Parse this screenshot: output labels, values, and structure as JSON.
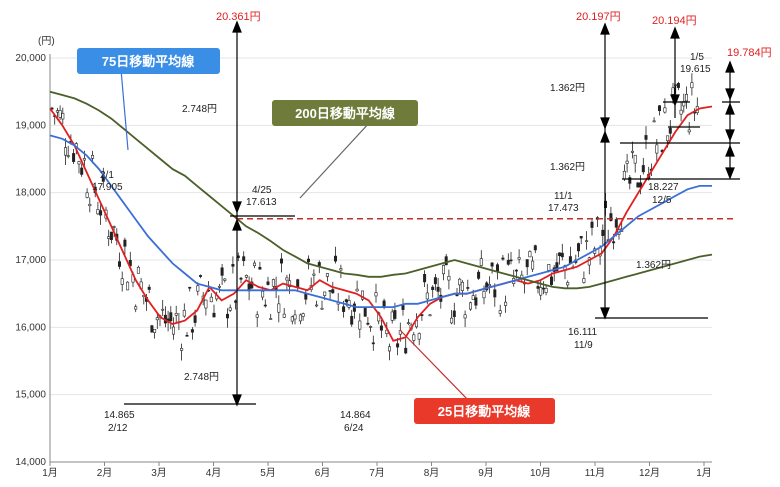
{
  "chart_data": {
    "type": "line",
    "y_unit_label": "(円)",
    "ylim": [
      14000,
      20000
    ],
    "y_ticks": [
      "20,000",
      "19,000",
      "18,000",
      "17,000",
      "16,000",
      "15,000",
      "14,000"
    ],
    "y_tick_values": [
      20000,
      19000,
      18000,
      17000,
      16000,
      15000,
      14000
    ],
    "x_ticks": [
      "1月",
      "2月",
      "3月",
      "4月",
      "5月",
      "6月",
      "7月",
      "8月",
      "9月",
      "10月",
      "11月",
      "12月",
      "1月"
    ],
    "series": [
      {
        "name": "25日移動平均線",
        "color": "#e02020",
        "values": [
          19250,
          19000,
          18700,
          18300,
          17900,
          17500,
          17100,
          16700,
          16400,
          16150,
          16050,
          16100,
          16250,
          16600,
          16400,
          16500,
          16700,
          16600,
          16550,
          16650,
          16600,
          16550,
          16700,
          16600,
          16550,
          16500,
          16400,
          16150,
          15800,
          15850,
          16150,
          16350,
          16450,
          16500,
          16500,
          16550,
          16600,
          16650,
          16700,
          16650,
          16700,
          16800,
          16850,
          16900,
          17000,
          17100,
          17350,
          17700,
          18000,
          18300,
          18600,
          18900,
          19150,
          19250,
          19280
        ]
      },
      {
        "name": "75日移動平均線",
        "color": "#3a6fd8",
        "values": [
          18850,
          18800,
          18700,
          18550,
          18350,
          18100,
          17850,
          17600,
          17350,
          17150,
          16950,
          16800,
          16650,
          16600,
          16550,
          16550,
          16550,
          16550,
          16550,
          16550,
          16550,
          16500,
          16450,
          16400,
          16350,
          16300,
          16300,
          16300,
          16300,
          16350,
          16350,
          16400,
          16450,
          16500,
          16500,
          16550,
          16600,
          16650,
          16700,
          16750,
          16800,
          16850,
          16900,
          17000,
          17100,
          17200,
          17350,
          17500,
          17650,
          17750,
          17850,
          17950,
          18050,
          18100,
          18100
        ]
      },
      {
        "name": "200日移動平均線",
        "color": "#4b5f2a",
        "values": [
          19500,
          19450,
          19400,
          19320,
          19220,
          19100,
          18950,
          18800,
          18650,
          18500,
          18350,
          18250,
          18100,
          17950,
          17800,
          17650,
          17500,
          17400,
          17280,
          17150,
          17050,
          16950,
          16900,
          16850,
          16800,
          16780,
          16750,
          16750,
          16780,
          16800,
          16850,
          16900,
          16950,
          17000,
          16950,
          16900,
          16850,
          16800,
          16750,
          16700,
          16650,
          16600,
          16580,
          16580,
          16600,
          16650,
          16700,
          16750,
          16800,
          16850,
          16900,
          16950,
          17000,
          17050,
          17080
        ]
      }
    ],
    "reference_level": 17613,
    "annotations": {
      "legend_75": "75日移動平均線",
      "legend_200": "200日移動平均線",
      "legend_25": "25日移動平均線",
      "high_apr_value": "20.361円",
      "span_apr": "2.748円",
      "span_apr_low": "2.748円",
      "feb_date": "2/1",
      "feb_value": "17.905",
      "apr_date": "4/25",
      "apr_value": "17.613",
      "low_feb_value": "14.865",
      "low_feb_date": "2/12",
      "low_jun_value": "14.864",
      "low_jun_date": "6/24",
      "nov_date": "11/1",
      "nov_value": "17.473",
      "nov_low_value": "16.111",
      "nov_low_date": "11/9",
      "dec_date": "12/5",
      "dec_value": "18.227",
      "jan_date": "1/5",
      "jan_value": "19.615",
      "top1": "20.197円",
      "top2": "20.194円",
      "top3": "19.784円",
      "span_nov_top": "1.362円",
      "span_nov_mid": "1.362円",
      "span_nov_low": "1.362円"
    }
  }
}
